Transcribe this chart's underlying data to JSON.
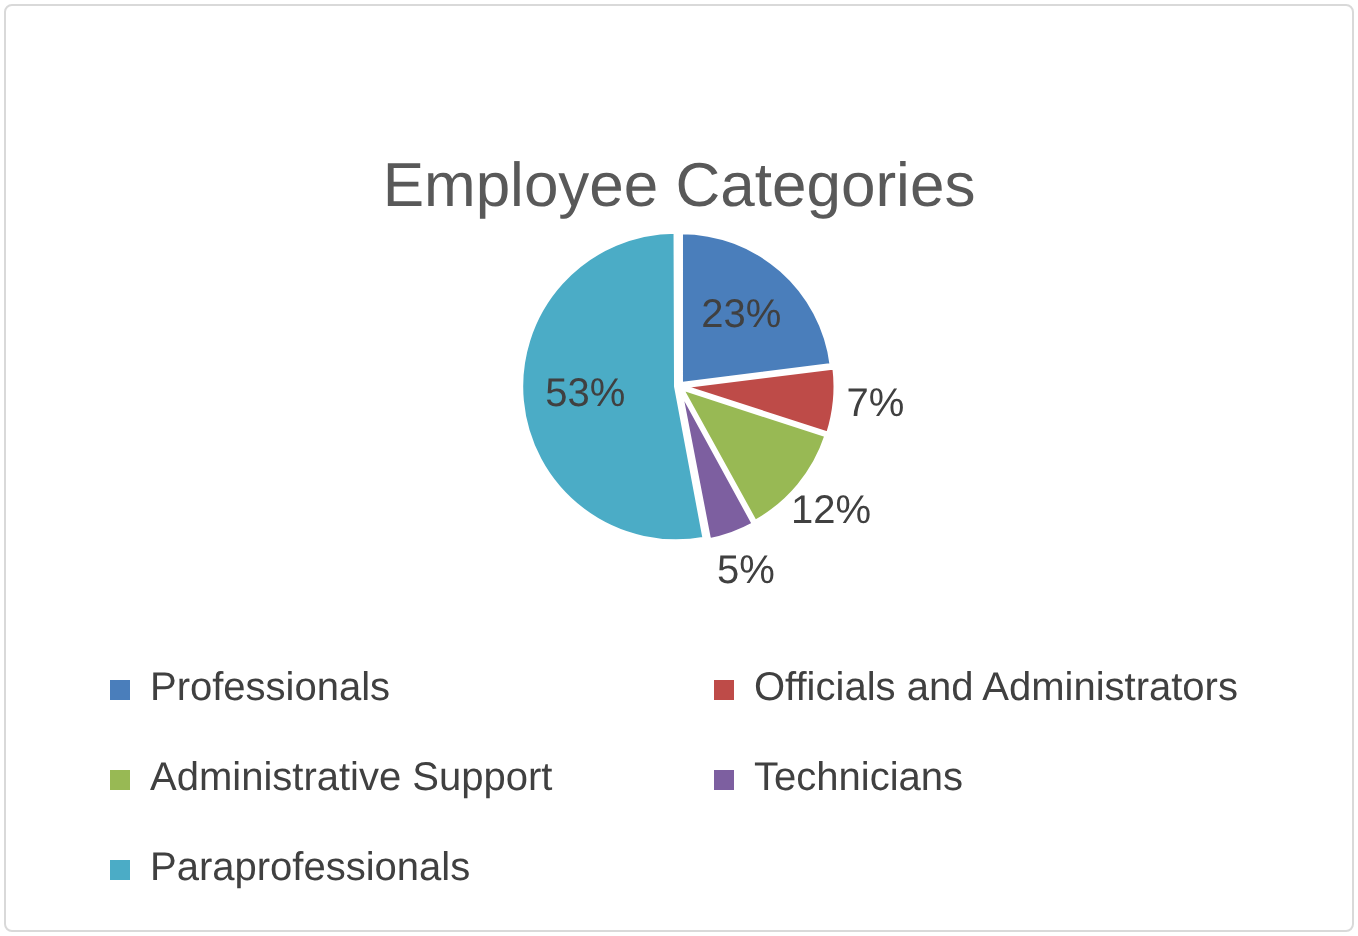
{
  "chart_data": {
    "type": "pie",
    "title": "Employee Categories",
    "categories": [
      "Professionals",
      "Officials and Administrators",
      "Administrative Support",
      "Technicians",
      "Paraprofessionals"
    ],
    "values": [
      23,
      7,
      12,
      5,
      53
    ],
    "colors": [
      "#4a7ebb",
      "#be4b48",
      "#98b954",
      "#7d5fa0",
      "#4bacc6"
    ],
    "value_labels": [
      "23%",
      "7%",
      "12%",
      "5%",
      "53%"
    ],
    "legend": "bottom"
  }
}
